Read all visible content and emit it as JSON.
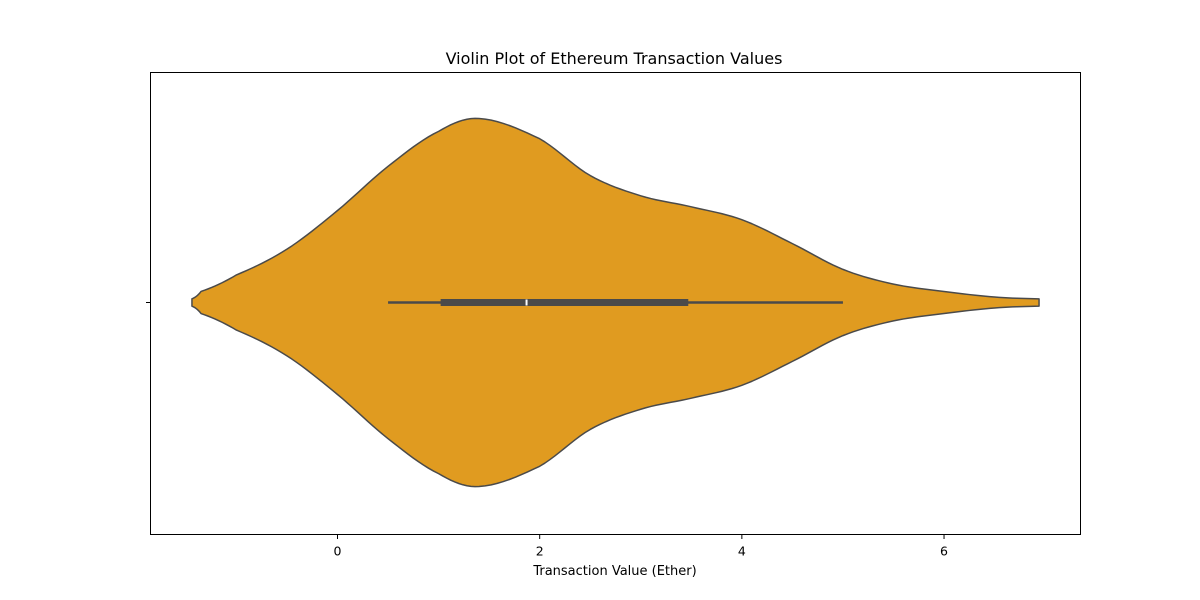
{
  "chart_data": {
    "type": "violin",
    "title": "Violin Plot of Ethereum Transaction Values",
    "xlabel": "Transaction Value (Ether)",
    "ylabel": "",
    "xlim": [
      -1.85,
      7.35
    ],
    "xticks": [
      0,
      2,
      4,
      6
    ],
    "xtick_labels": [
      "0",
      "2",
      "4",
      "6"
    ],
    "grid": false,
    "fill_color": "#e09b20",
    "edge_color": "#4a4a4a",
    "box_color": "#4a4a4a",
    "median_color": "#ffffff",
    "density_extent": [
      -1.44,
      6.94
    ],
    "density_profile": [
      [
        -1.44,
        0.02
      ],
      [
        -1.35,
        0.06
      ],
      [
        -1.0,
        0.15
      ],
      [
        -0.5,
        0.29
      ],
      [
        0.0,
        0.5
      ],
      [
        0.5,
        0.74
      ],
      [
        1.0,
        0.93
      ],
      [
        1.4,
        1.0
      ],
      [
        2.0,
        0.89
      ],
      [
        2.5,
        0.69
      ],
      [
        3.0,
        0.58
      ],
      [
        3.5,
        0.52
      ],
      [
        4.0,
        0.45
      ],
      [
        4.5,
        0.32
      ],
      [
        5.0,
        0.18
      ],
      [
        5.5,
        0.1
      ],
      [
        6.0,
        0.06
      ],
      [
        6.5,
        0.03
      ],
      [
        6.94,
        0.02
      ]
    ],
    "box": {
      "whisker_low": 0.5,
      "q1": 1.02,
      "median": 1.87,
      "q3": 3.47,
      "whisker_high": 5.0
    }
  }
}
